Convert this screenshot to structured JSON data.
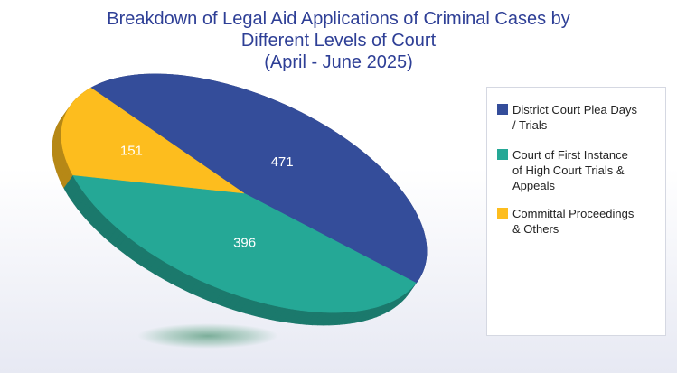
{
  "chart_data": {
    "type": "pie",
    "title": "Breakdown of Legal Aid Applications of Criminal Cases by Different Levels of Court",
    "subtitle": "(April - June 2025)",
    "title_lines": [
      "Breakdown of Legal Aid Applications of Criminal Cases by",
      "Different Levels of Court",
      "(April - June 2025)"
    ],
    "categories": [
      "District Court Plea Days / Trials",
      "Court of First Instance of High Court Trials & Appeals",
      "Committal Proceedings & Others"
    ],
    "values": [
      471,
      396,
      151
    ],
    "colors": [
      "#344d9a",
      "#25a896",
      "#fdbd1e"
    ],
    "style": "3d",
    "legend_position": "right"
  },
  "legend": [
    {
      "lines": [
        "District Court Plea Days",
        "/ Trials"
      ],
      "color": "#344d9a"
    },
    {
      "lines": [
        "Court of First Instance",
        "of High Court Trials &",
        "Appeals"
      ],
      "color": "#25a896"
    },
    {
      "lines": [
        "Committal Proceedings",
        "& Others"
      ],
      "color": "#fdbd1e"
    }
  ]
}
